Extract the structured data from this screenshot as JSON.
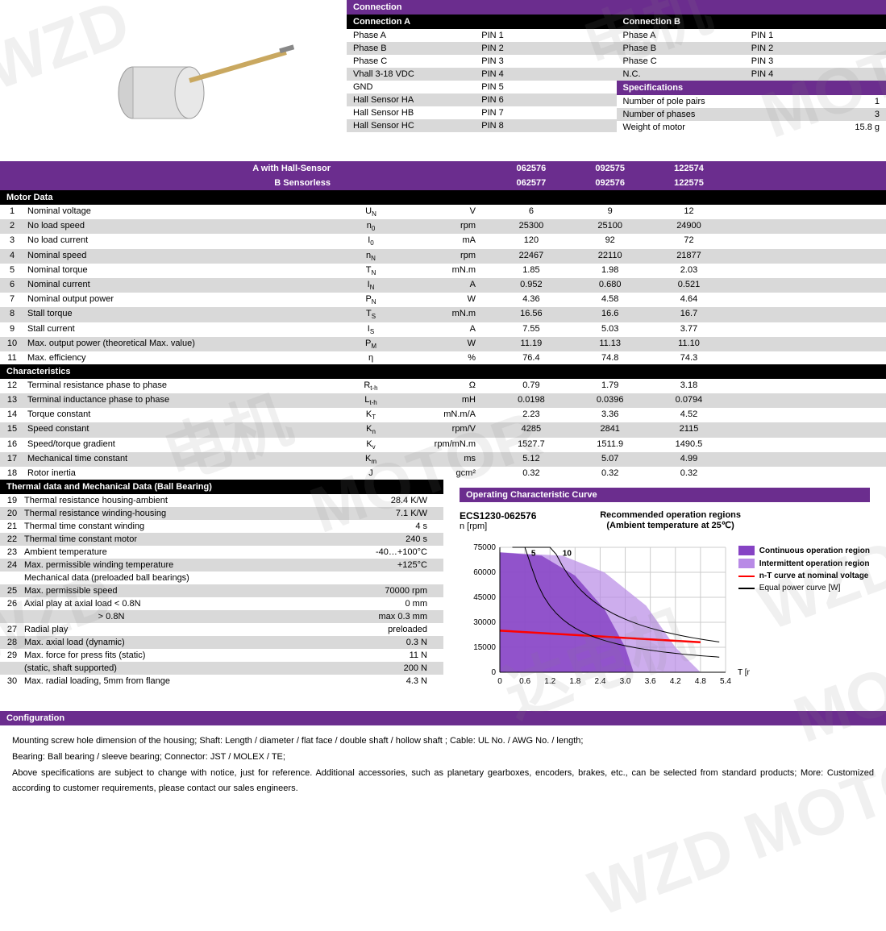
{
  "connection": {
    "title": "Connection",
    "colA": {
      "title": "Connection A",
      "rows": [
        [
          "Phase A",
          "PIN 1"
        ],
        [
          "Phase B",
          "PIN 2"
        ],
        [
          "Phase C",
          "PIN 3"
        ],
        [
          "Vhall 3-18 VDC",
          "PIN 4"
        ],
        [
          "GND",
          "PIN 5"
        ],
        [
          "Hall Sensor HA",
          "PIN 6"
        ],
        [
          "Hall Sensor HB",
          "PIN 7"
        ],
        [
          "Hall Sensor HC",
          "PIN 8"
        ]
      ]
    },
    "colB": {
      "title": "Connection B",
      "rows": [
        [
          "Phase A",
          "PIN 1"
        ],
        [
          "Phase B",
          "PIN 2"
        ],
        [
          "Phase C",
          "PIN 3"
        ],
        [
          "N.C.",
          "PIN 4"
        ]
      ]
    },
    "specs": {
      "title": "Specifications",
      "rows": [
        [
          "Number of pole pairs",
          "1"
        ],
        [
          "Number of phases",
          "3"
        ],
        [
          "Weight of motor",
          "15.8 g"
        ]
      ]
    }
  },
  "variants": {
    "labelA": "A with Hall-Sensor",
    "labelB": "B Sensorless",
    "codesA": [
      "062576",
      "092575",
      "122574"
    ],
    "codesB": [
      "062577",
      "092576",
      "122575"
    ]
  },
  "motorDataTitle": "Motor Data",
  "motorData": [
    {
      "n": "1",
      "name": "Nominal voltage",
      "sym": "U",
      "sub": "N",
      "unit": "V",
      "v": [
        "6",
        "9",
        "12"
      ]
    },
    {
      "n": "2",
      "name": "No load speed",
      "sym": "n",
      "sub": "0",
      "unit": "rpm",
      "v": [
        "25300",
        "25100",
        "24900"
      ]
    },
    {
      "n": "3",
      "name": "No load current",
      "sym": "I",
      "sub": "0",
      "unit": "mA",
      "v": [
        "120",
        "92",
        "72"
      ]
    },
    {
      "n": "4",
      "name": "Nominal speed",
      "sym": "n",
      "sub": "N",
      "unit": "rpm",
      "v": [
        "22467",
        "22110",
        "21877"
      ]
    },
    {
      "n": "5",
      "name": "Nominal torque",
      "sym": "T",
      "sub": "N",
      "unit": "mN.m",
      "v": [
        "1.85",
        "1.98",
        "2.03"
      ]
    },
    {
      "n": "6",
      "name": "Nominal current",
      "sym": "I",
      "sub": "N",
      "unit": "A",
      "v": [
        "0.952",
        "0.680",
        "0.521"
      ]
    },
    {
      "n": "7",
      "name": "Nominal output power",
      "sym": "P",
      "sub": "N",
      "unit": "W",
      "v": [
        "4.36",
        "4.58",
        "4.64"
      ]
    },
    {
      "n": "8",
      "name": "Stall torque",
      "sym": "T",
      "sub": "S",
      "unit": "mN.m",
      "v": [
        "16.56",
        "16.6",
        "16.7"
      ]
    },
    {
      "n": "9",
      "name": "Stall current",
      "sym": "I",
      "sub": "S",
      "unit": "A",
      "v": [
        "7.55",
        "5.03",
        "3.77"
      ]
    },
    {
      "n": "10",
      "name": "Max. output power (theoretical Max. value)",
      "sym": "P",
      "sub": "M",
      "unit": "W",
      "v": [
        "11.19",
        "11.13",
        "11.10"
      ]
    },
    {
      "n": "11",
      "name": "Max. efficiency",
      "sym": "η",
      "sub": "",
      "unit": "%",
      "v": [
        "76.4",
        "74.8",
        "74.3"
      ]
    }
  ],
  "charTitle": "Characteristics",
  "characteristics": [
    {
      "n": "12",
      "name": "Terminal resistance phase to phase",
      "sym": "R",
      "sub": "t-h",
      "unit": "Ω",
      "v": [
        "0.79",
        "1.79",
        "3.18"
      ]
    },
    {
      "n": "13",
      "name": "Terminal inductance phase to phase",
      "sym": "L",
      "sub": "t-h",
      "unit": "mH",
      "v": [
        "0.0198",
        "0.0396",
        "0.0794"
      ]
    },
    {
      "n": "14",
      "name": "Torque constant",
      "sym": "K",
      "sub": "T",
      "unit": "mN.m/A",
      "v": [
        "2.23",
        "3.36",
        "4.52"
      ]
    },
    {
      "n": "15",
      "name": "Speed constant",
      "sym": "K",
      "sub": "n",
      "unit": "rpm/V",
      "v": [
        "4285",
        "2841",
        "2115"
      ]
    },
    {
      "n": "16",
      "name": "Speed/torque gradient",
      "sym": "K",
      "sub": "v",
      "unit": "rpm/mN.m",
      "v": [
        "1527.7",
        "1511.9",
        "1490.5"
      ]
    },
    {
      "n": "17",
      "name": "Mechanical time constant",
      "sym": "K",
      "sub": "m",
      "unit": "ms",
      "v": [
        "5.12",
        "5.07",
        "4.99"
      ]
    },
    {
      "n": "18",
      "name": "Rotor inertia",
      "sym": "J",
      "sub": "",
      "unit": "gcm²",
      "v": [
        "0.32",
        "0.32",
        "0.32"
      ]
    }
  ],
  "thermalTitle": "Thermal data and Mechanical Data (Ball Bearing)",
  "thermal": [
    {
      "n": "19",
      "name": "Thermal resistance housing-ambient",
      "v": "28.4 K/W"
    },
    {
      "n": "20",
      "name": "Thermal resistance winding-housing",
      "v": "7.1 K/W"
    },
    {
      "n": "21",
      "name": "Thermal time constant winding",
      "v": "4 s"
    },
    {
      "n": "22",
      "name": "Thermal time constant motor",
      "v": "240 s"
    },
    {
      "n": "23",
      "name": "Ambient temperature",
      "v": "-40…+100°C"
    },
    {
      "n": "24",
      "name": "Max. permissible winding temperature",
      "v": "+125°C"
    },
    {
      "n": "",
      "name": "Mechanical data (preloaded ball bearings)",
      "v": ""
    },
    {
      "n": "25",
      "name": "Max. permissible speed",
      "v": "70000 rpm"
    },
    {
      "n": "26",
      "name": "Axial play at axial load < 0.8N",
      "v": "0 mm"
    },
    {
      "n": "",
      "name": "                                > 0.8N",
      "v": "max 0.3 mm"
    },
    {
      "n": "27",
      "name": "Radial play",
      "v": "preloaded"
    },
    {
      "n": "28",
      "name": "Max. axial load (dynamic)",
      "v": "0.3 N"
    },
    {
      "n": "29",
      "name": "Max. force for press fits (static)",
      "v": "11 N"
    },
    {
      "n": "",
      "name": "(static, shaft supported)",
      "v": "200 N"
    },
    {
      "n": "30",
      "name": "Max. radial loading, 5mm from flange",
      "v": "4.3 N"
    }
  ],
  "chart": {
    "headerTitle": "Operating Characteristic Curve",
    "model": "ECS1230-062576",
    "ylabel": "n [rpm]",
    "subtitle1": "Recommended operation regions",
    "subtitle2": "(Ambient temperature at 25℃)",
    "xlabel": "T [mN.m]",
    "yticks": [
      "0",
      "15000",
      "30000",
      "45000",
      "60000",
      "75000"
    ],
    "xticks": [
      "0",
      "0.6",
      "1.2",
      "1.8",
      "2.4",
      "3.0",
      "3.6",
      "4.2",
      "4.8",
      "5.4"
    ],
    "powerLabels": [
      "5",
      "10"
    ],
    "legend": {
      "cont": "Continuous operation region",
      "inter": "Intermittent operation region",
      "nt": "n-T curve at nominal voltage",
      "eq": "Equal power curve [W]"
    },
    "colors": {
      "cont": "#8643c4",
      "inter": "#b88ae6",
      "nt": "#ff0000",
      "eq": "#000000",
      "grid": "#cccccc"
    }
  },
  "configTitle": "Configuration",
  "configText1": "Mounting screw hole dimension of the housing;   Shaft: Length / diameter / flat face / double shaft / hollow shaft ;    Cable: UL No. / AWG No. / length;",
  "configText2": "Bearing: Ball bearing / sleeve bearing;   Connector: JST / MOLEX / TE;",
  "configText3": "Above specifications are subject to change with notice, just for reference.   Additional accessories, such as planetary gearboxes, encoders, brakes, etc., can be selected from standard products; More: Customized according to customer requirements, please contact our sales engineers."
}
